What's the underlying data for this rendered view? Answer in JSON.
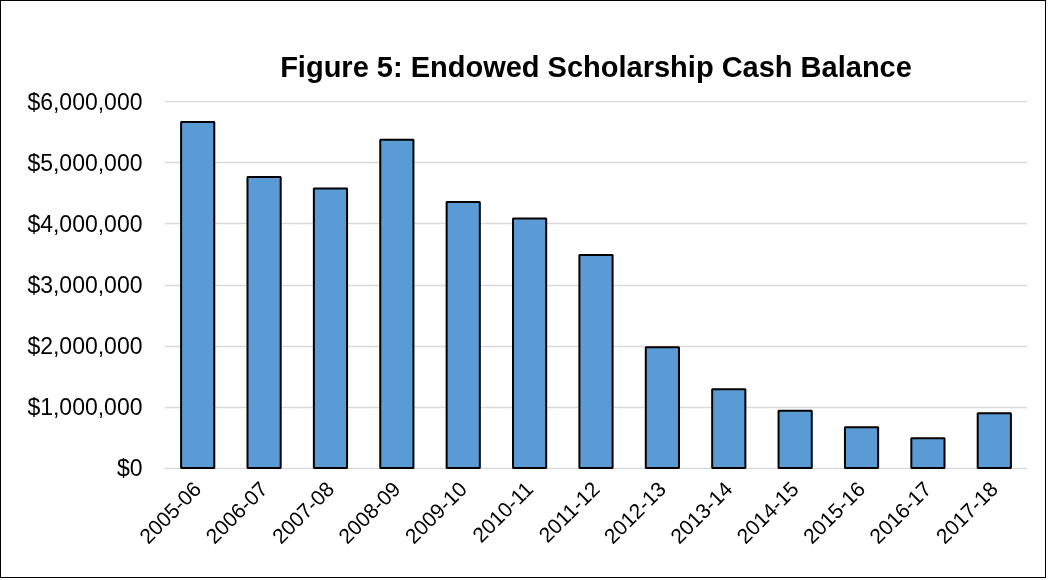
{
  "chart_data": {
    "type": "bar",
    "title": "Figure 5: Endowed Scholarship Cash Balance",
    "categories": [
      "2005-06",
      "2006-07",
      "2007-08",
      "2008-09",
      "2009-10",
      "2010-11",
      "2011-12",
      "2012-13",
      "2013-14",
      "2014-15",
      "2015-16",
      "2016-17",
      "2017-18"
    ],
    "values": [
      5670000,
      4770000,
      4580000,
      5380000,
      4360000,
      4090000,
      3490000,
      1980000,
      1290000,
      940000,
      670000,
      490000,
      900000
    ],
    "color": "#5b9bd5",
    "ylim": [
      0,
      6000000
    ],
    "yticks": [
      {
        "value": 0,
        "label": "$0"
      },
      {
        "value": 1000000,
        "label": "$1,000,000"
      },
      {
        "value": 2000000,
        "label": "$2,000,000"
      },
      {
        "value": 3000000,
        "label": "$3,000,000"
      },
      {
        "value": 4000000,
        "label": "$4,000,000"
      },
      {
        "value": 5000000,
        "label": "$5,000,000"
      },
      {
        "value": 6000000,
        "label": "$6,000,000"
      }
    ],
    "grid": "y"
  }
}
